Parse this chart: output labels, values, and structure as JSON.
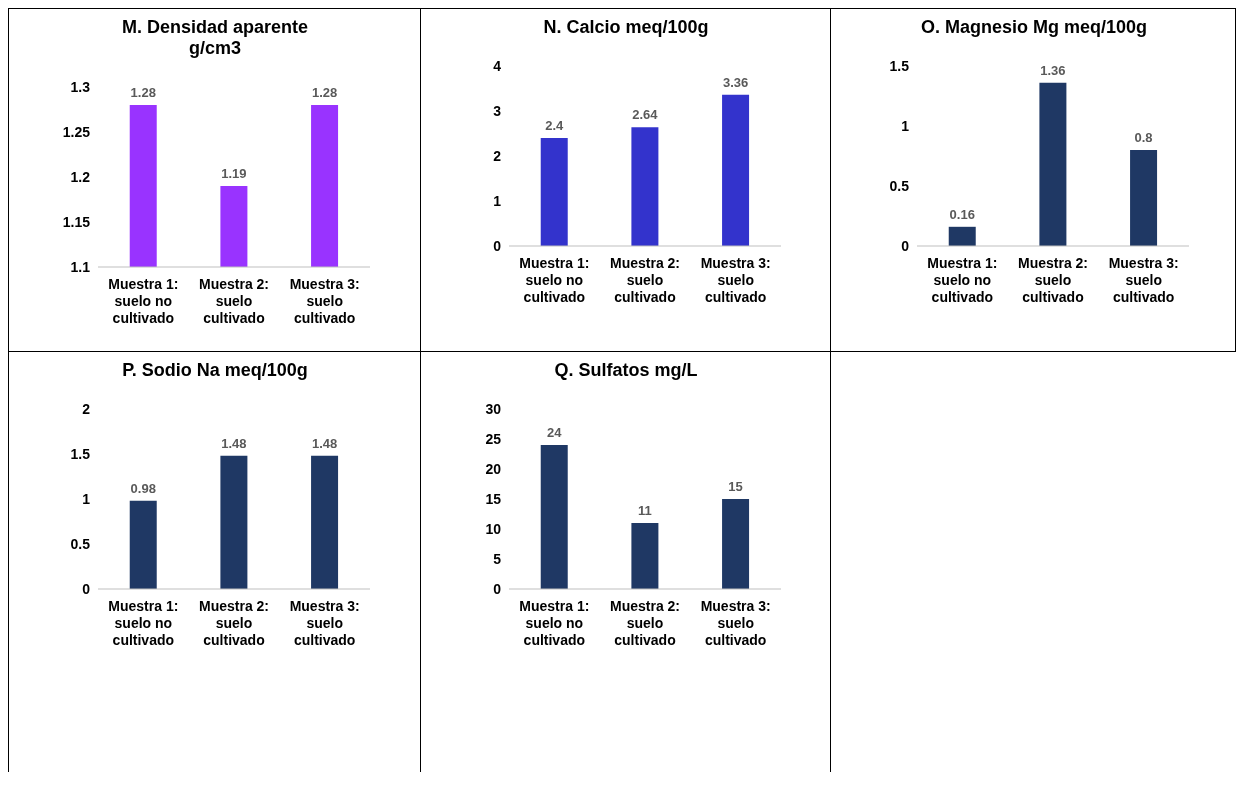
{
  "chart_data": [
    {
      "type": "bar",
      "title": "M. Densidad aparente g/cm3",
      "categories": [
        "Muestra 1: suelo no cultivado",
        "Muestra 2: suelo cultivado",
        "Muestra 3: suelo cultivado"
      ],
      "values": [
        1.28,
        1.19,
        1.28
      ],
      "color": "#9933ff",
      "ylim": [
        1.1,
        1.3
      ],
      "yticks": [
        1.1,
        1.15,
        1.2,
        1.25,
        1.3
      ],
      "grid": false,
      "data_labels": true
    },
    {
      "type": "bar",
      "title": "N. Calcio meq/100g",
      "categories": [
        "Muestra 1: suelo no cultivado",
        "Muestra 2: suelo cultivado",
        "Muestra 3: suelo cultivado"
      ],
      "values": [
        2.4,
        2.64,
        3.36
      ],
      "color": "#3333cc",
      "ylim": [
        0,
        4
      ],
      "yticks": [
        0,
        1,
        2,
        3,
        4
      ],
      "grid": false,
      "data_labels": true
    },
    {
      "type": "bar",
      "title": "O. Magnesio Mg meq/100g",
      "categories": [
        "Muestra 1: suelo no cultivado",
        "Muestra 2: suelo cultivado",
        "Muestra 3: suelo cultivado"
      ],
      "values": [
        0.16,
        1.36,
        0.8
      ],
      "color": "#1f3864",
      "ylim": [
        0,
        1.5
      ],
      "yticks": [
        0,
        0.5,
        1,
        1.5
      ],
      "grid": false,
      "data_labels": true
    },
    {
      "type": "bar",
      "title": "P. Sodio Na meq/100g",
      "categories": [
        "Muestra 1: suelo no cultivado",
        "Muestra 2: suelo cultivado",
        "Muestra 3: suelo cultivado"
      ],
      "values": [
        0.98,
        1.48,
        1.48
      ],
      "color": "#1f3864",
      "ylim": [
        0,
        2
      ],
      "yticks": [
        0,
        0.5,
        1,
        1.5,
        2
      ],
      "grid": false,
      "data_labels": true
    },
    {
      "type": "bar",
      "title": "Q. Sulfatos mg/L",
      "categories": [
        "Muestra 1: suelo no cultivado",
        "Muestra 2: suelo cultivado",
        "Muestra 3: suelo cultivado"
      ],
      "values": [
        24,
        11,
        15
      ],
      "color": "#1f3864",
      "ylim": [
        0,
        30
      ],
      "yticks": [
        0,
        5,
        10,
        15,
        20,
        25,
        30
      ],
      "grid": false,
      "data_labels": true
    }
  ]
}
